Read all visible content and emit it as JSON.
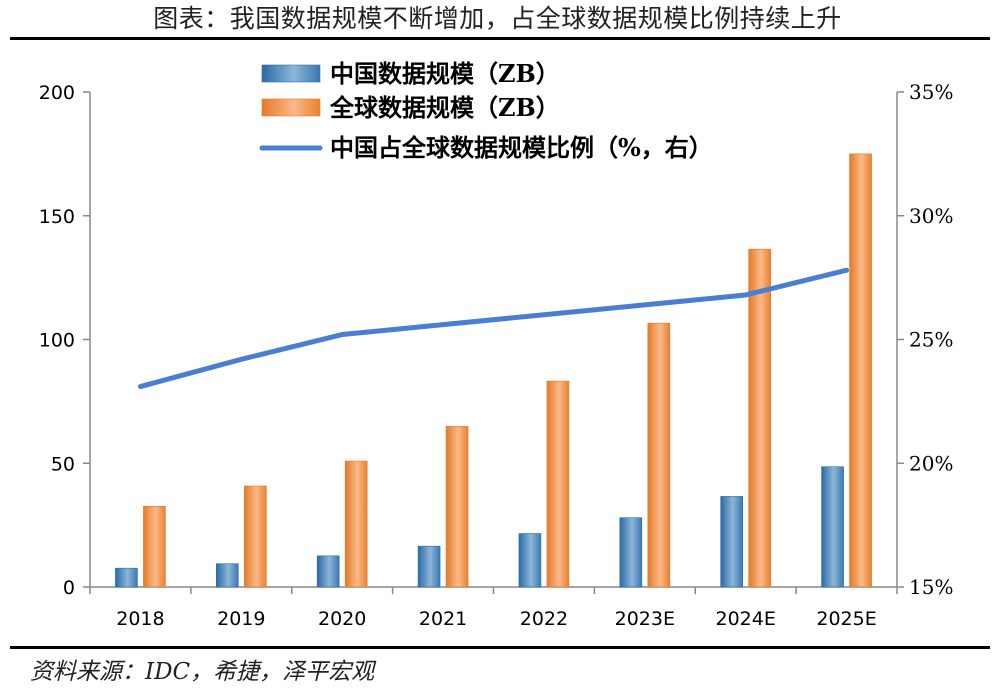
{
  "header": {
    "title": "图表：我国数据规模不断增加，占全球数据规模比例持续上升"
  },
  "footer": {
    "source": "资料来源：IDC，希捷，泽平宏观"
  },
  "colors": {
    "china_bar": "#3f7fb9",
    "global_bar": "#ee8a3c",
    "share_line": "#4a7ed2",
    "axis": "#888888"
  },
  "chart_data": {
    "type": "bar",
    "categories": [
      "2018",
      "2019",
      "2020",
      "2021",
      "2022",
      "2023E",
      "2024E",
      "2025E"
    ],
    "series": [
      {
        "name": "中国数据规模（ZB）",
        "type": "bar",
        "axis": "left",
        "values": [
          7.6,
          9.4,
          12.6,
          16.5,
          21.6,
          28.0,
          36.6,
          48.6
        ]
      },
      {
        "name": "全球数据规模（ZB）",
        "type": "bar",
        "axis": "left",
        "values": [
          32.6,
          40.8,
          50.9,
          64.9,
          83.2,
          106.6,
          136.5,
          175.0
        ]
      },
      {
        "name": "中国占全球数据规模比例（%，右）",
        "type": "line",
        "axis": "right",
        "values": [
          23.1,
          24.2,
          25.2,
          25.6,
          26.0,
          26.4,
          26.8,
          27.8
        ]
      }
    ],
    "y_left": {
      "ticks": [
        "0",
        "50",
        "100",
        "150",
        "200"
      ],
      "ylim": [
        0,
        200
      ]
    },
    "y_right": {
      "ticks": [
        "15%",
        "20%",
        "25%",
        "30%",
        "35%"
      ],
      "ylim": [
        15,
        35
      ]
    },
    "legend": "top-center",
    "grid": false
  }
}
